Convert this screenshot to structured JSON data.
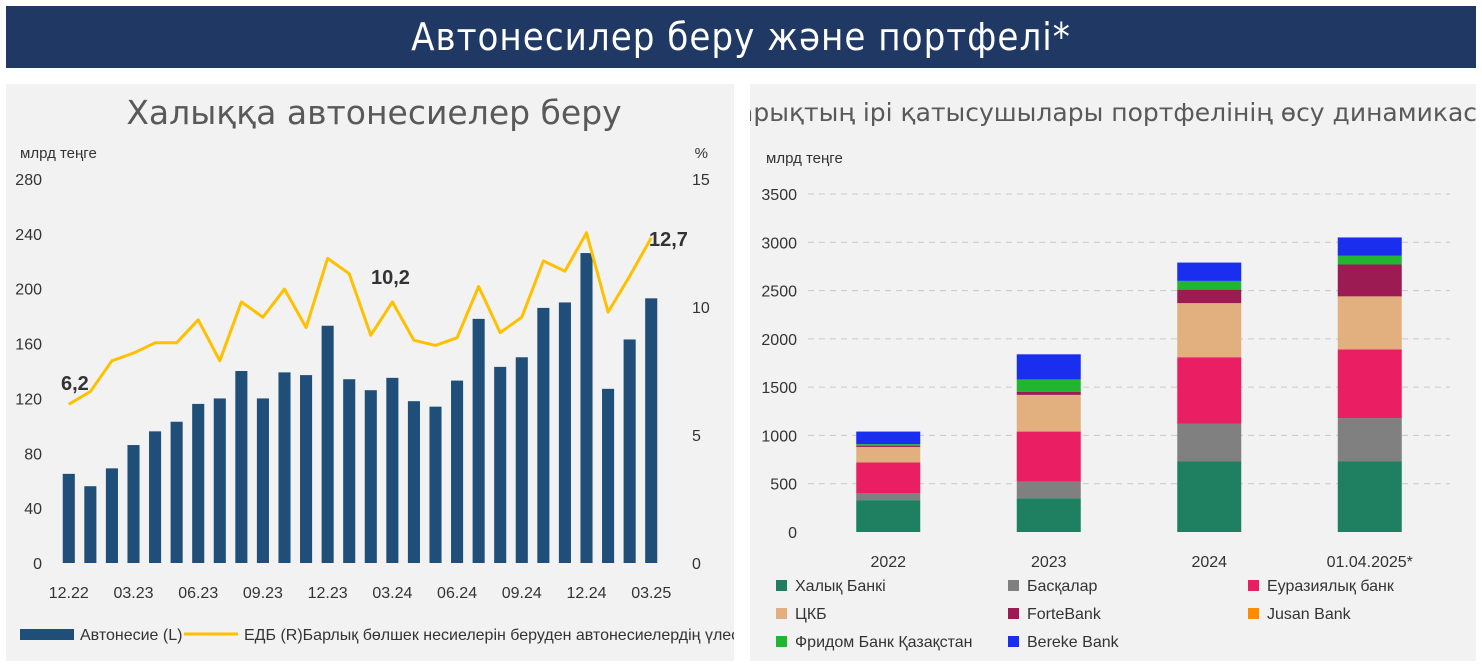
{
  "banner": {
    "title": "Автонесилер беру және портфелі*"
  },
  "colors": {
    "banner": "#1f3864",
    "bars": "#1f4e79",
    "line": "#ffc000",
    "halyk": "#1e8060",
    "baskalar": "#808080",
    "eurasian": "#e91e63",
    "tsb": "#e2b07f",
    "forte": "#9b1b52",
    "jusan": "#ff8c00",
    "freedom": "#22b532",
    "bereke": "#1a2ef0"
  },
  "chart_data": [
    {
      "type": "bar",
      "title": "Халыққа автонесиелер беру",
      "ylabel": "млрд теңге",
      "y2label": "%",
      "ylim": [
        0,
        280
      ],
      "y2lim": [
        0,
        15
      ],
      "yticks": [
        "0",
        "40",
        "80",
        "120",
        "160",
        "200",
        "240",
        "280"
      ],
      "y2ticks": [
        "0",
        "5",
        "10",
        "15"
      ],
      "xticks": [
        "12.22",
        "03.23",
        "06.23",
        "09.23",
        "12.23",
        "03.24",
        "06.24",
        "09.24",
        "12.24",
        "03.25"
      ],
      "grid": false,
      "legend_position": "bottom",
      "series": [
        {
          "name": "Автонесие (L)",
          "type": "bar",
          "axis": "left",
          "values": [
            65,
            56,
            69,
            86,
            96,
            103,
            116,
            120,
            140,
            120,
            139,
            137,
            173,
            134,
            126,
            135,
            118,
            114,
            133,
            178,
            143,
            150,
            186,
            190,
            226,
            127,
            163,
            193
          ]
        },
        {
          "name": "ЕДБ (R)Барлық бөлшек несиелерін беруден автонесиелердің үлесі",
          "type": "line",
          "axis": "right",
          "values": [
            6.2,
            6.7,
            7.9,
            8.2,
            8.6,
            8.6,
            9.5,
            7.9,
            10.2,
            9.6,
            10.7,
            9.2,
            11.9,
            11.3,
            8.9,
            10.2,
            8.7,
            8.5,
            8.8,
            10.8,
            9.0,
            9.6,
            11.8,
            11.4,
            12.9,
            9.8,
            11.2,
            12.7
          ]
        }
      ],
      "annotations": [
        "6,2",
        "10,2",
        "12,7"
      ]
    },
    {
      "type": "bar",
      "stacked": true,
      "title": "Нарықтың ірі қатысушылары портфелінің өсу динамикасы",
      "ylabel": "млрд теңге",
      "ylim": [
        0,
        3500
      ],
      "yticks": [
        "0",
        "500",
        "1000",
        "1500",
        "2000",
        "2500",
        "3000",
        "3500"
      ],
      "categories": [
        "2022",
        "2023",
        "2024",
        "01.04.2025*"
      ],
      "grid": true,
      "legend_position": "bottom",
      "series": [
        {
          "name": "Халық Банкі",
          "values": [
            330,
            350,
            730,
            730
          ]
        },
        {
          "name": "Басқалар",
          "values": [
            70,
            170,
            390,
            450
          ]
        },
        {
          "name": "Еуразиялық банк",
          "values": [
            320,
            520,
            690,
            710
          ]
        },
        {
          "name": "ЦКБ",
          "values": [
            160,
            380,
            560,
            550
          ]
        },
        {
          "name": "ForteBank",
          "values": [
            10,
            30,
            140,
            330
          ]
        },
        {
          "name": "Jusan Bank",
          "values": [
            0,
            0,
            0,
            0
          ]
        },
        {
          "name": "Фридом Банк Қазақстан",
          "values": [
            20,
            130,
            90,
            90
          ]
        },
        {
          "name": "Bereke Bank",
          "values": [
            130,
            260,
            190,
            190
          ]
        }
      ]
    }
  ]
}
